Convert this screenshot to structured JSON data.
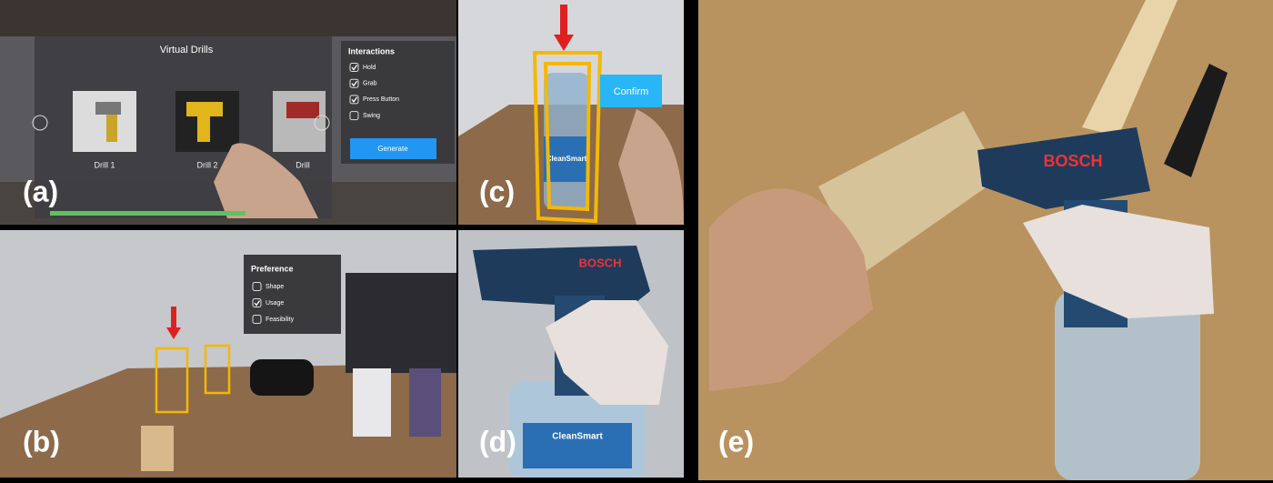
{
  "panels": [
    {
      "label": "(a)",
      "title": "Virtual Drills",
      "items": [
        "Drill 1",
        "Drill 2",
        "Drill"
      ],
      "menu": {
        "title": "Interactions",
        "options": [
          "Hold",
          "Grab",
          "Press Button",
          "Swing"
        ],
        "checked": [
          true,
          true,
          true,
          false
        ],
        "button": "Generate"
      }
    },
    {
      "label": "(b)",
      "menu": {
        "title": "Preference",
        "options": [
          "Shape",
          "Usage",
          "Feasibility"
        ],
        "checked": [
          false,
          true,
          false
        ]
      }
    },
    {
      "label": "(c)",
      "button": "Confirm",
      "bottle": "CleanSmart"
    },
    {
      "label": "(d)",
      "brand": "BOSCH",
      "bottle": "CleanSmart"
    },
    {
      "label": "(e)",
      "brand": "BOSCH"
    }
  ]
}
